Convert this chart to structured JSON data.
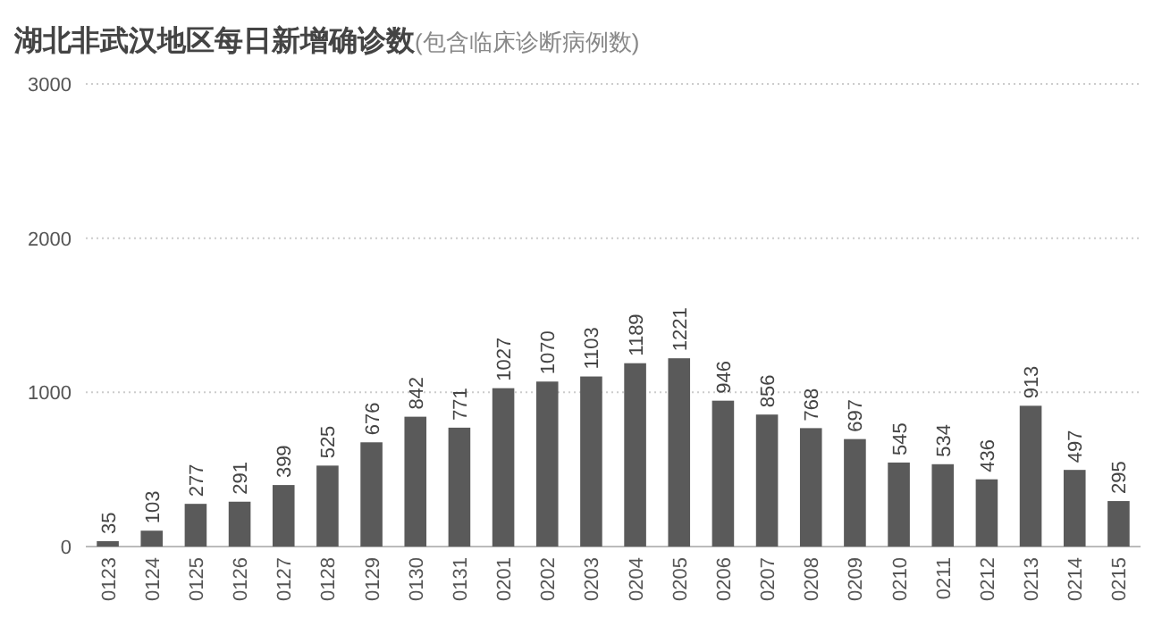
{
  "chart_data": {
    "type": "bar",
    "title": "湖北非武汉地区每日新增确诊数",
    "subtitle": "(包含临床诊断病例数)",
    "categories": [
      "0123",
      "0124",
      "0125",
      "0126",
      "0127",
      "0128",
      "0129",
      "0130",
      "0131",
      "0201",
      "0202",
      "0203",
      "0204",
      "0205",
      "0206",
      "0207",
      "0208",
      "0209",
      "0210",
      "0211",
      "0212",
      "0213",
      "0214",
      "0215"
    ],
    "values": [
      35,
      103,
      277,
      291,
      399,
      525,
      676,
      842,
      771,
      1027,
      1070,
      1103,
      1189,
      1221,
      946,
      856,
      768,
      697,
      545,
      534,
      436,
      913,
      497,
      295
    ],
    "color": "#5a5a5a",
    "ylim": [
      0,
      3000
    ],
    "yticks": [
      0,
      1000,
      2000,
      3000
    ],
    "grid": "y",
    "data_labels": true
  }
}
